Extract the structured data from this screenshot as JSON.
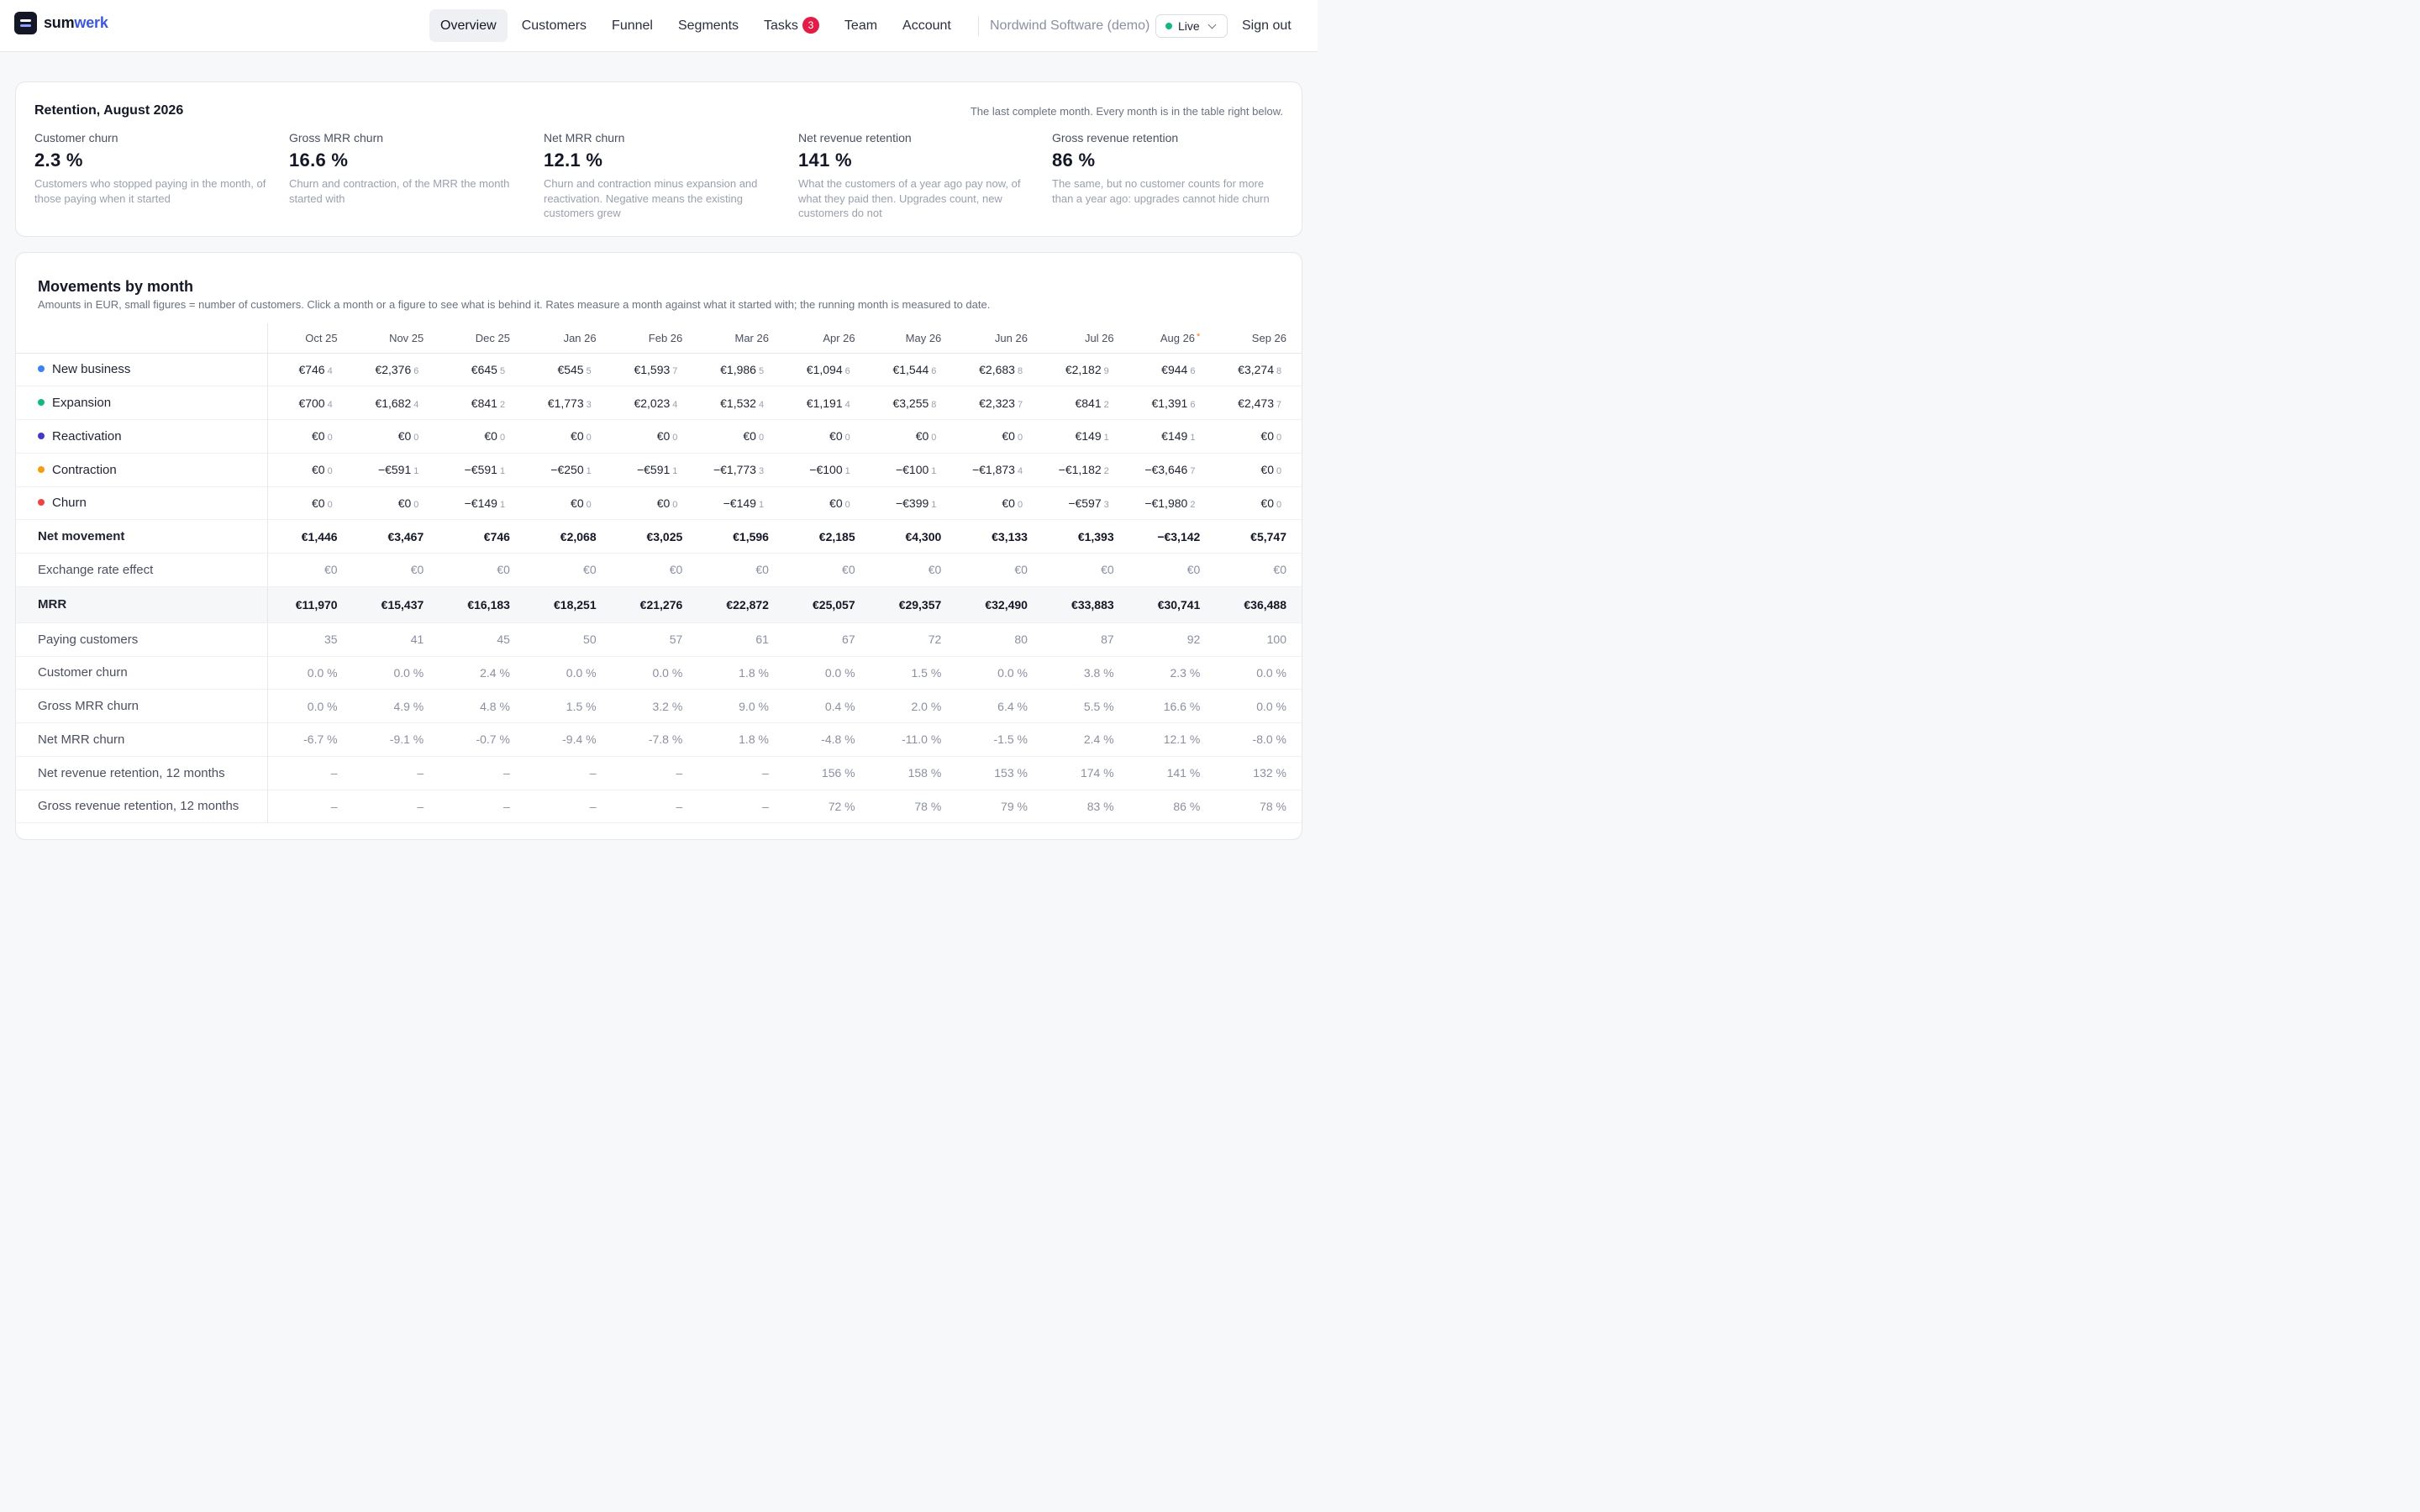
{
  "brand": {
    "part1": "sum",
    "part2": "werk"
  },
  "nav": [
    {
      "label": "Overview",
      "active": true
    },
    {
      "label": "Customers"
    },
    {
      "label": "Funnel"
    },
    {
      "label": "Segments"
    },
    {
      "label": "Tasks",
      "badge": "3"
    },
    {
      "label": "Team"
    },
    {
      "label": "Account"
    }
  ],
  "org": "Nordwind Software (demo)",
  "env": {
    "label": "Live",
    "status_color": "#10b981"
  },
  "signout": "Sign out",
  "summary": {
    "title": "Retention, August 2026",
    "note": "The last complete month. Every month is in the table right below.",
    "kpis": [
      {
        "label": "Customer churn",
        "value": "2.3 %",
        "desc": "Customers who stopped paying in the month, of those paying when it started"
      },
      {
        "label": "Gross MRR churn",
        "value": "16.6 %",
        "desc": "Churn and contraction, of the MRR the month started with"
      },
      {
        "label": "Net MRR churn",
        "value": "12.1 %",
        "desc": "Churn and contraction minus expansion and reactivation. Negative means the existing customers grew"
      },
      {
        "label": "Net revenue retention",
        "value": "141 %",
        "desc": "What the customers of a year ago pay now, of what they paid then. Upgrades count, new customers do not"
      },
      {
        "label": "Gross revenue retention",
        "value": "86 %",
        "desc": "The same, but no customer counts for more than a year ago: upgrades cannot hide churn"
      }
    ]
  },
  "movements": {
    "title": "Movements by month",
    "subtitle": "Amounts in EUR, small figures = number of customers. Click a month or a figure to see what is behind it. Rates measure a month against what it started with; the running month is measured to date.",
    "months": [
      "Oct 25",
      "Nov 25",
      "Dec 25",
      "Jan 26",
      "Feb 26",
      "Mar 26",
      "Apr 26",
      "May 26",
      "Jun 26",
      "Jul 26",
      "Aug 26",
      "Sep 26"
    ],
    "running_month_marker": "*",
    "movement_rows": [
      {
        "label": "New business",
        "color": "#3b82f6",
        "values": [
          "€746",
          "€2,376",
          "€645",
          "€545",
          "€1,593",
          "€1,986",
          "€1,094",
          "€1,544",
          "€2,683",
          "€2,182",
          "€944",
          "€3,274"
        ],
        "counts": [
          "4",
          "6",
          "5",
          "5",
          "7",
          "5",
          "6",
          "6",
          "8",
          "9",
          "6",
          "8"
        ]
      },
      {
        "label": "Expansion",
        "color": "#10b981",
        "values": [
          "€700",
          "€1,682",
          "€841",
          "€1,773",
          "€2,023",
          "€1,532",
          "€1,191",
          "€3,255",
          "€2,323",
          "€841",
          "€1,391",
          "€2,473"
        ],
        "counts": [
          "4",
          "4",
          "2",
          "3",
          "4",
          "4",
          "4",
          "8",
          "7",
          "2",
          "6",
          "7"
        ]
      },
      {
        "label": "Reactivation",
        "color": "#4338ca",
        "values": [
          "€0",
          "€0",
          "€0",
          "€0",
          "€0",
          "€0",
          "€0",
          "€0",
          "€0",
          "€149",
          "€149",
          "€0"
        ],
        "counts": [
          "0",
          "0",
          "0",
          "0",
          "0",
          "0",
          "0",
          "0",
          "0",
          "1",
          "1",
          "0"
        ]
      },
      {
        "label": "Contraction",
        "color": "#f59e0b",
        "values": [
          "€0",
          "−€591",
          "−€591",
          "−€250",
          "−€591",
          "−€1,773",
          "−€100",
          "−€100",
          "−€1,873",
          "−€1,182",
          "−€3,646",
          "€0"
        ],
        "counts": [
          "0",
          "1",
          "1",
          "1",
          "1",
          "3",
          "1",
          "1",
          "4",
          "2",
          "7",
          "0"
        ]
      },
      {
        "label": "Churn",
        "color": "#ef4444",
        "values": [
          "€0",
          "€0",
          "−€149",
          "€0",
          "€0",
          "−€149",
          "€0",
          "−€399",
          "€0",
          "−€597",
          "−€1,980",
          "€0"
        ],
        "counts": [
          "0",
          "0",
          "1",
          "0",
          "0",
          "1",
          "0",
          "1",
          "0",
          "3",
          "2",
          "0"
        ]
      }
    ],
    "net_movement": {
      "label": "Net movement",
      "values": [
        "€1,446",
        "€3,467",
        "€746",
        "€2,068",
        "€3,025",
        "€1,596",
        "€2,185",
        "€4,300",
        "€3,133",
        "€1,393",
        "−€3,142",
        "€5,747"
      ]
    },
    "fx_effect": {
      "label": "Exchange rate effect",
      "values": [
        "€0",
        "€0",
        "€0",
        "€0",
        "€0",
        "€0",
        "€0",
        "€0",
        "€0",
        "€0",
        "€0",
        "€0"
      ]
    },
    "mrr": {
      "label": "MRR",
      "values": [
        "€11,970",
        "€15,437",
        "€16,183",
        "€18,251",
        "€21,276",
        "€22,872",
        "€25,057",
        "€29,357",
        "€32,490",
        "€33,883",
        "€30,741",
        "€36,488"
      ]
    },
    "rate_rows": [
      {
        "label": "Paying customers",
        "values": [
          "35",
          "41",
          "45",
          "50",
          "57",
          "61",
          "67",
          "72",
          "80",
          "87",
          "92",
          "100"
        ]
      },
      {
        "label": "Customer churn",
        "values": [
          "0.0 %",
          "0.0 %",
          "2.4 %",
          "0.0 %",
          "0.0 %",
          "1.8 %",
          "0.0 %",
          "1.5 %",
          "0.0 %",
          "3.8 %",
          "2.3 %",
          "0.0 %"
        ]
      },
      {
        "label": "Gross MRR churn",
        "values": [
          "0.0 %",
          "4.9 %",
          "4.8 %",
          "1.5 %",
          "3.2 %",
          "9.0 %",
          "0.4 %",
          "2.0 %",
          "6.4 %",
          "5.5 %",
          "16.6 %",
          "0.0 %"
        ]
      },
      {
        "label": "Net MRR churn",
        "values": [
          "-6.7 %",
          "-9.1 %",
          "-0.7 %",
          "-9.4 %",
          "-7.8 %",
          "1.8 %",
          "-4.8 %",
          "-11.0 %",
          "-1.5 %",
          "2.4 %",
          "12.1 %",
          "-8.0 %"
        ]
      },
      {
        "label": "Net revenue retention, 12 months",
        "values": [
          "–",
          "–",
          "–",
          "–",
          "–",
          "–",
          "156 %",
          "158 %",
          "153 %",
          "174 %",
          "141 %",
          "132 %"
        ]
      },
      {
        "label": "Gross revenue retention, 12 months",
        "values": [
          "–",
          "–",
          "–",
          "–",
          "–",
          "–",
          "72 %",
          "78 %",
          "79 %",
          "83 %",
          "86 %",
          "78 %"
        ]
      }
    ]
  }
}
